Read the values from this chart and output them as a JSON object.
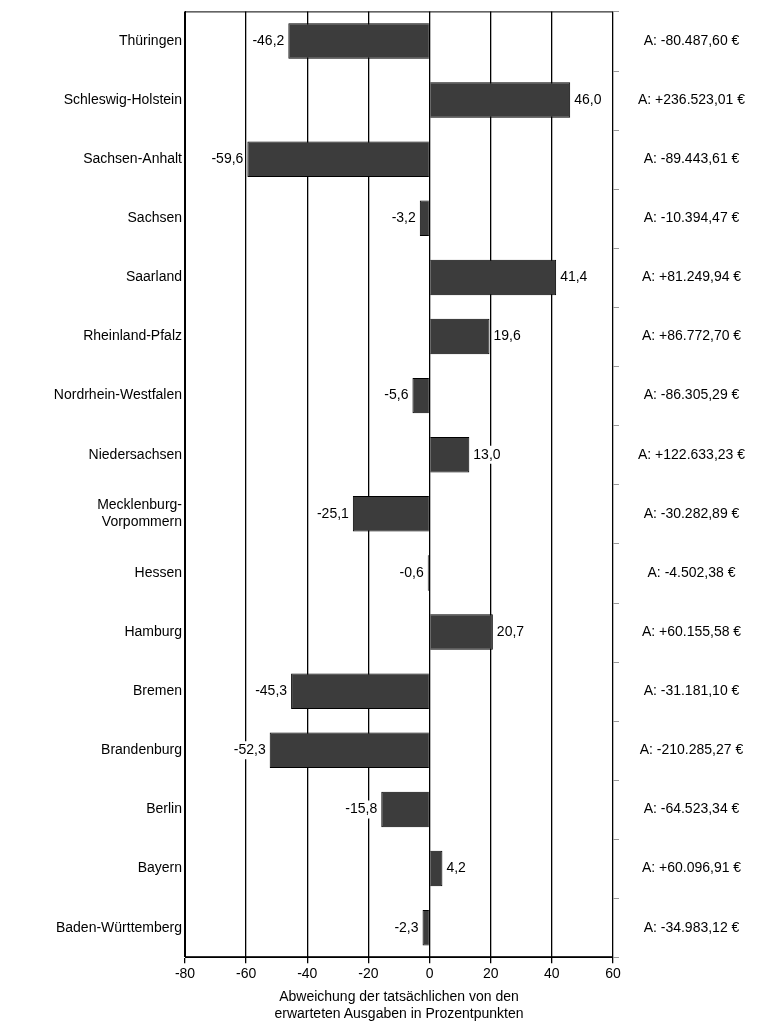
{
  "chart_data": {
    "type": "bar",
    "orientation": "horizontal",
    "xlabel": "Abweichung der tatsächlichen von den erwarteten Ausgaben in Prozentpunkten",
    "categories": [
      "Thüringen",
      "Schleswig-Holstein",
      "Sachsen-Anhalt",
      "Sachsen",
      "Saarland",
      "Rheinland-Pfalz",
      "Nordrhein-Westfalen",
      "Niedersachsen",
      "Mecklenburg-Vorpommern",
      "Hessen",
      "Hamburg",
      "Bremen",
      "Brandenburg",
      "Berlin",
      "Bayern",
      "Baden-Württemberg"
    ],
    "values": [
      -46.2,
      46.0,
      -59.6,
      -3.2,
      41.4,
      19.6,
      -5.6,
      13.0,
      -25.1,
      -0.6,
      20.7,
      -45.3,
      -52.3,
      -15.8,
      4.2,
      -2.3
    ],
    "value_labels": [
      "-46,2",
      "46,0",
      "-59,6",
      "-3,2",
      "41,4",
      "19,6",
      "-5,6",
      "13,0",
      "-25,1",
      "-0,6",
      "20,7",
      "-45,3",
      "-52,3",
      "-15,8",
      "4,2",
      "-2,3"
    ],
    "color": "#3c3c3c",
    "xlim": [
      -80,
      60
    ],
    "xticks": [
      -80,
      -60,
      -40,
      -20,
      0,
      20,
      40,
      60
    ],
    "grid": "x",
    "legend": false,
    "annotations": [
      "A: -80.487,60 €",
      "A: +236.523,01 €",
      "A: -89.443,61 €",
      "A: -10.394,47 €",
      "A: +81.249,94 €",
      "A: +86.772,70 €",
      "A: -86.305,29 €",
      "A: +122.633,23 €",
      "A: -30.282,89 €",
      "A: -4.502,38 €",
      "A: +60.155,58 €",
      "A: -31.181,10 €",
      "A: -210.285,27 €",
      "A: -64.523,34 €",
      "A: +60.096,91 €",
      "A: -34.983,12 €"
    ]
  }
}
